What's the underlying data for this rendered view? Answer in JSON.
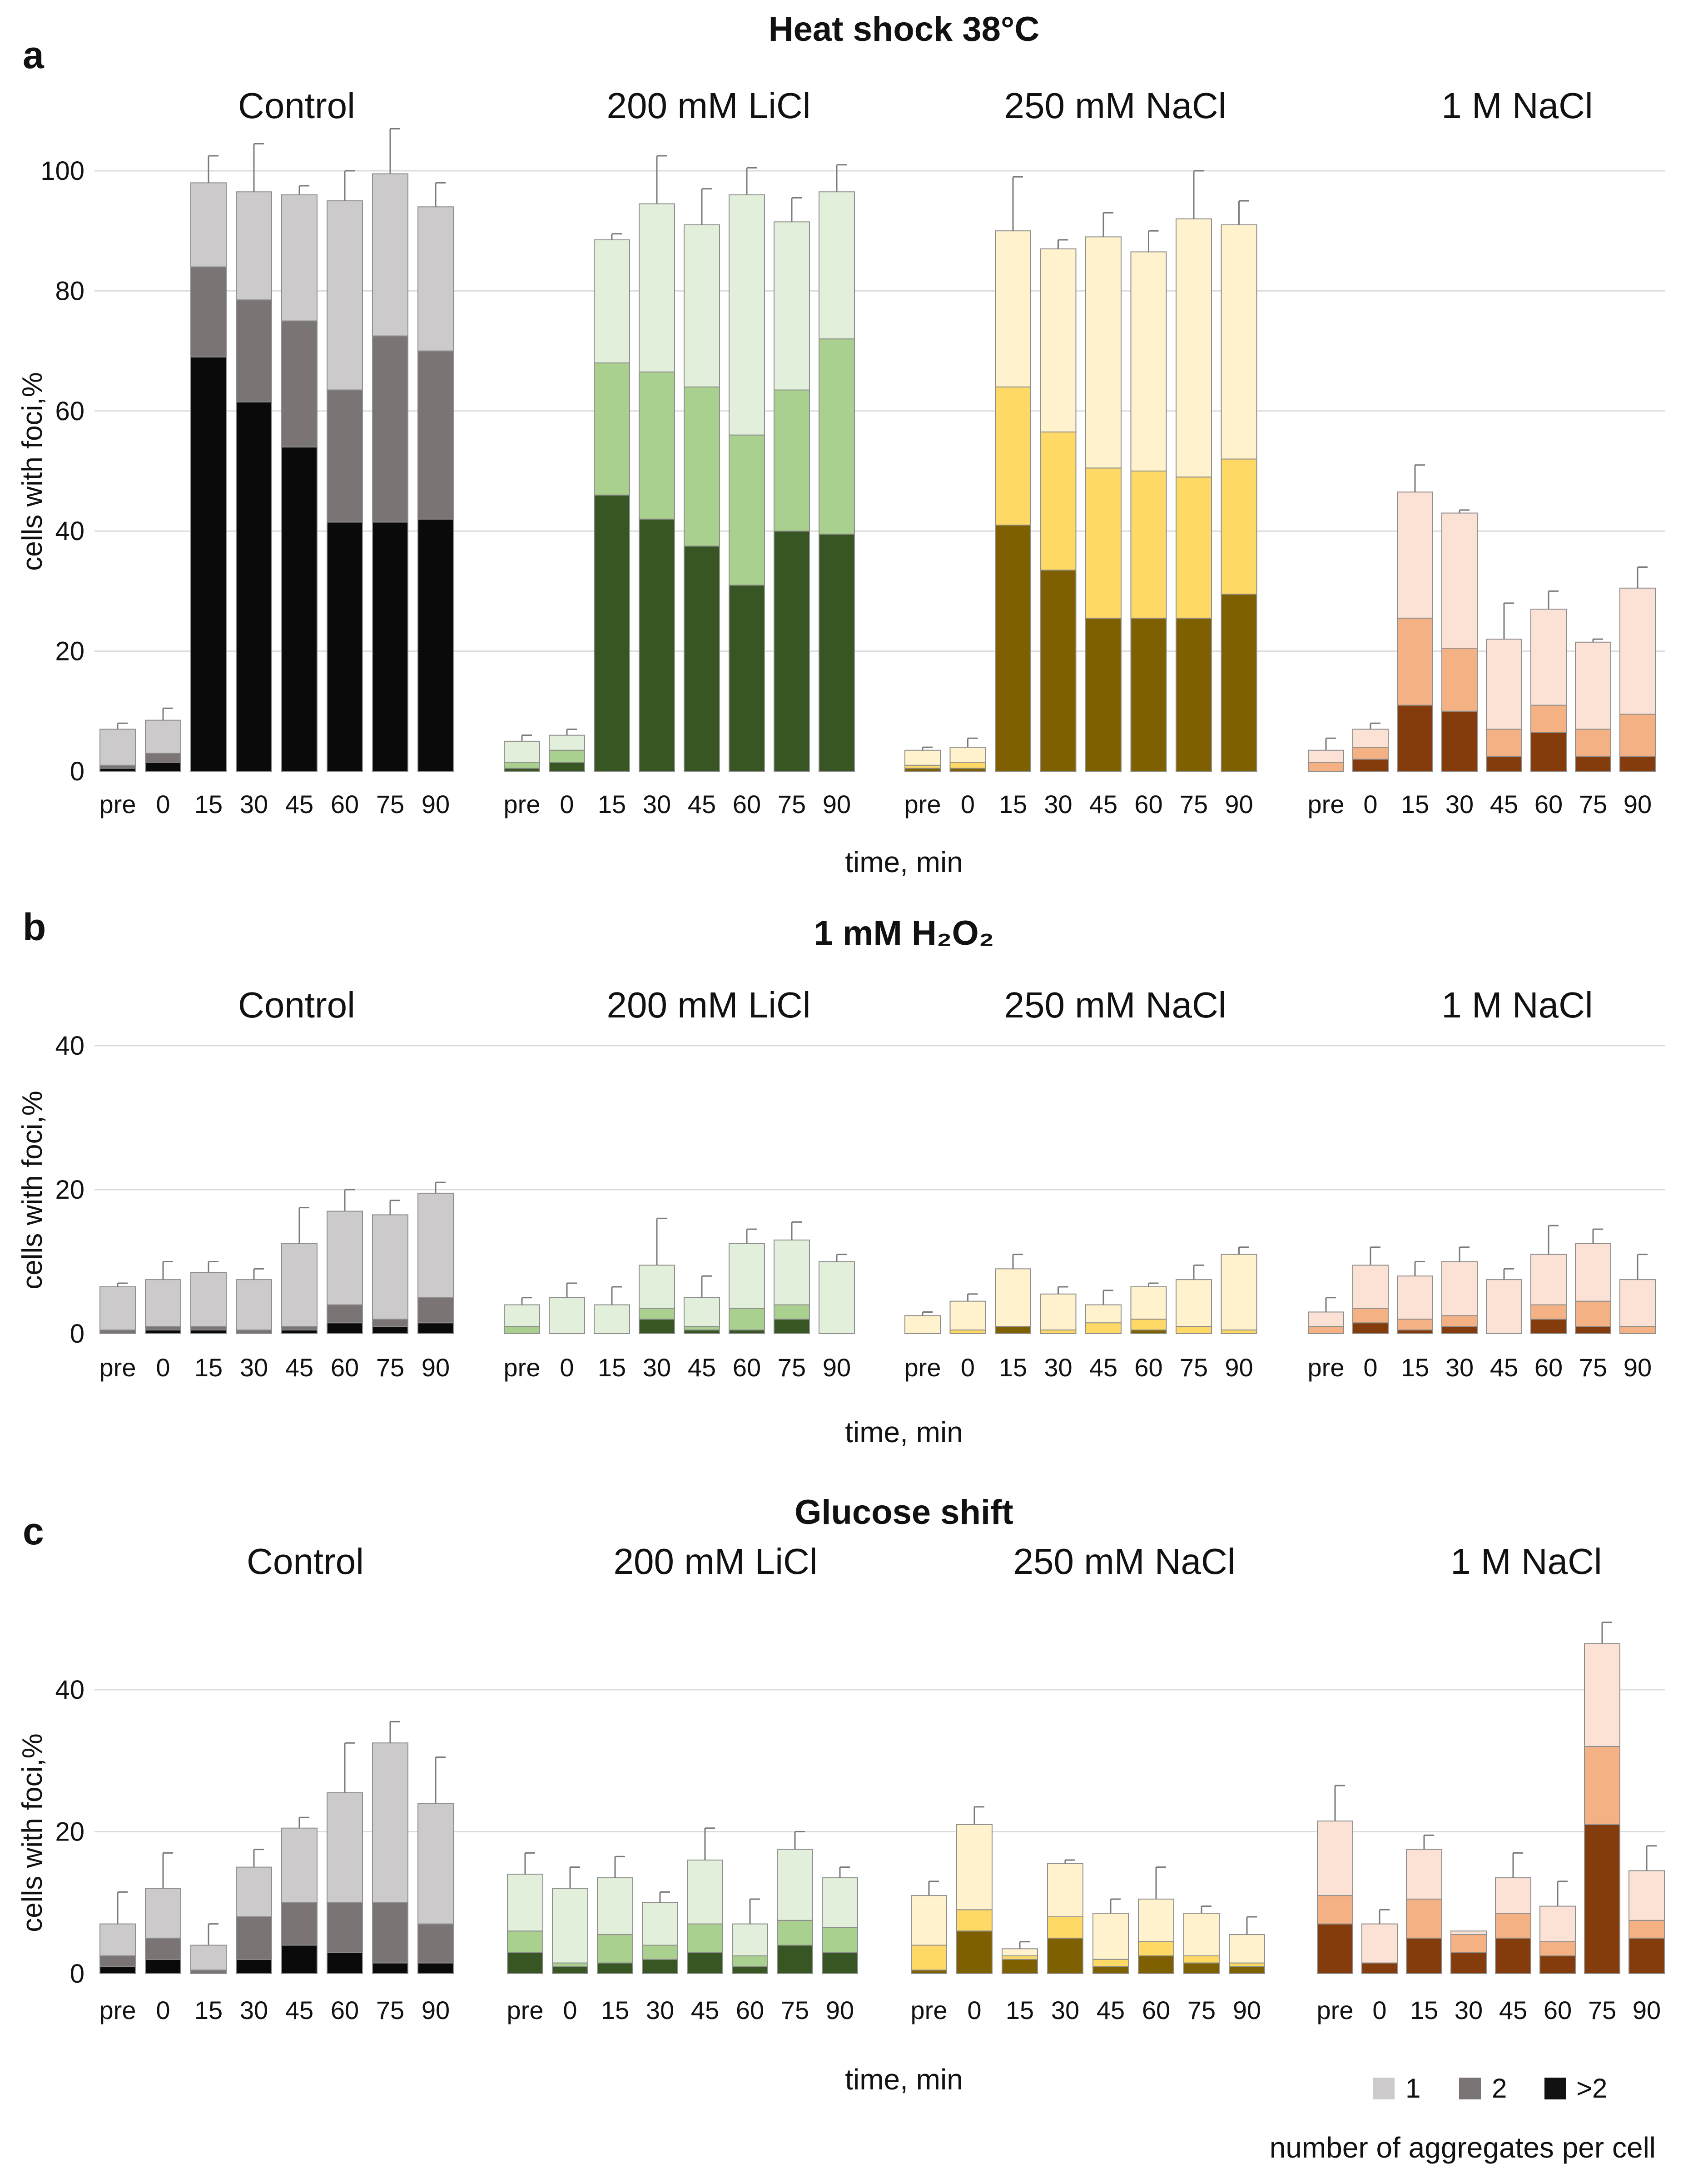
{
  "figure": {
    "xlabel": "time, min",
    "ylabel": "cells with foci,%",
    "legend": {
      "entries": [
        "1",
        "2",
        ">2"
      ],
      "title": "number of aggregates per cell",
      "colors": [
        "#cccacb",
        "#7a7474",
        "#111111"
      ]
    },
    "palettes": [
      [
        "#cccacb",
        "#7a7474",
        "#0a0a0a"
      ],
      [
        "#e2efda",
        "#a9d08e",
        "#375623"
      ],
      [
        "#fff2cc",
        "#ffd966",
        "#7f6000"
      ],
      [
        "#fbe2d5",
        "#f4b183",
        "#843c0c"
      ]
    ]
  },
  "chart_data": [
    {
      "type": "bar",
      "panel": "a",
      "title": "Heat shock 38°C",
      "ylim": [
        0,
        100
      ],
      "yticks": [
        0,
        20,
        40,
        60,
        80,
        100
      ],
      "xlabel": "time, min",
      "ylabel": "cells with foci,%",
      "groups": [
        {
          "name": "Control",
          "categories": [
            "pre",
            "0",
            "15",
            "30",
            "45",
            "60",
            "75",
            "90"
          ],
          "series": [
            {
              "name": "1",
              "values": [
                6,
                5.5,
                14,
                18,
                21,
                31.5,
                27,
                24
              ]
            },
            {
              "name": "2",
              "values": [
                0.5,
                1.5,
                15,
                17,
                21,
                22,
                31,
                28
              ]
            },
            {
              "name": ">2",
              "values": [
                0.5,
                1.5,
                69,
                61.5,
                54,
                41.5,
                41.5,
                42
              ]
            }
          ],
          "errors": [
            1,
            2,
            4.5,
            8,
            1.5,
            5,
            7.5,
            4
          ]
        },
        {
          "name": "200 mM LiCl",
          "categories": [
            "pre",
            "0",
            "15",
            "30",
            "45",
            "60",
            "75",
            "90"
          ],
          "series": [
            {
              "name": "1",
              "values": [
                3.5,
                2.5,
                20.5,
                28,
                27,
                40,
                28,
                24.5
              ]
            },
            {
              "name": "2",
              "values": [
                1,
                2,
                22,
                24.5,
                26.5,
                25,
                23.5,
                32.5
              ]
            },
            {
              "name": ">2",
              "values": [
                0.5,
                1.5,
                46,
                42,
                37.5,
                31,
                40,
                39.5
              ]
            }
          ],
          "errors": [
            1,
            1,
            1,
            8,
            6,
            4.5,
            4,
            4.5
          ]
        },
        {
          "name": "250 mM NaCl",
          "categories": [
            "pre",
            "0",
            "15",
            "30",
            "45",
            "60",
            "75",
            "90"
          ],
          "series": [
            {
              "name": "1",
              "values": [
                2.5,
                2.5,
                26,
                30.5,
                38.5,
                36.5,
                43,
                39
              ]
            },
            {
              "name": "2",
              "values": [
                0.5,
                1,
                23,
                23,
                25,
                24.5,
                23.5,
                22.5
              ]
            },
            {
              "name": ">2",
              "values": [
                0.5,
                0.5,
                41,
                33.5,
                25.5,
                25.5,
                25.5,
                29.5
              ]
            }
          ],
          "errors": [
            0.5,
            1.5,
            9,
            1.5,
            4,
            3.5,
            8,
            4
          ]
        },
        {
          "name": "1 M NaCl",
          "categories": [
            "pre",
            "0",
            "15",
            "30",
            "45",
            "60",
            "75",
            "90"
          ],
          "series": [
            {
              "name": "1",
              "values": [
                2,
                3,
                21,
                22.5,
                15,
                16,
                14.5,
                21
              ]
            },
            {
              "name": "2",
              "values": [
                1.5,
                2,
                14.5,
                10.5,
                4.5,
                4.5,
                4.5,
                7
              ]
            },
            {
              "name": ">2",
              "values": [
                0,
                2,
                11,
                10,
                2.5,
                6.5,
                2.5,
                2.5
              ]
            }
          ],
          "errors": [
            2,
            1,
            4.5,
            0.5,
            6,
            3,
            0.5,
            3.5
          ]
        }
      ]
    },
    {
      "type": "bar",
      "panel": "b",
      "title": "1 mM H₂O₂",
      "ylim": [
        0,
        40
      ],
      "yticks": [
        0,
        20,
        40
      ],
      "xlabel": "time, min",
      "ylabel": "cells with foci,%",
      "groups": [
        {
          "name": "Control",
          "categories": [
            "pre",
            "0",
            "15",
            "30",
            "45",
            "60",
            "75",
            "90"
          ],
          "series": [
            {
              "name": "1",
              "values": [
                6,
                6.5,
                7.5,
                7,
                11.5,
                13,
                14.5,
                14.5
              ]
            },
            {
              "name": "2",
              "values": [
                0.5,
                0.5,
                0.5,
                0.5,
                0.5,
                2.5,
                1,
                3.5
              ]
            },
            {
              "name": ">2",
              "values": [
                0,
                0.5,
                0.5,
                0,
                0.5,
                1.5,
                1,
                1.5
              ]
            }
          ],
          "errors": [
            0.5,
            2.5,
            1.5,
            1.5,
            5,
            3,
            2,
            1.5
          ]
        },
        {
          "name": "200 mM LiCl",
          "categories": [
            "pre",
            "0",
            "15",
            "30",
            "45",
            "60",
            "75",
            "90"
          ],
          "series": [
            {
              "name": "1",
              "values": [
                3,
                5,
                4,
                6,
                4,
                9,
                9,
                10
              ]
            },
            {
              "name": "2",
              "values": [
                1,
                0,
                0,
                1.5,
                0.5,
                3,
                2,
                0
              ]
            },
            {
              "name": ">2",
              "values": [
                0,
                0,
                0,
                2,
                0.5,
                0.5,
                2,
                0
              ]
            }
          ],
          "errors": [
            1,
            2,
            2.5,
            6.5,
            3,
            2,
            2.5,
            1
          ]
        },
        {
          "name": "250 mM NaCl",
          "categories": [
            "pre",
            "0",
            "15",
            "30",
            "45",
            "60",
            "75",
            "90"
          ],
          "series": [
            {
              "name": "1",
              "values": [
                2.5,
                4,
                8,
                5,
                2.5,
                4.5,
                6.5,
                10.5
              ]
            },
            {
              "name": "2",
              "values": [
                0,
                0.5,
                0,
                0.5,
                1.5,
                1.5,
                1,
                0.5
              ]
            },
            {
              "name": ">2",
              "values": [
                0,
                0,
                1,
                0,
                0,
                0.5,
                0,
                0
              ]
            }
          ],
          "errors": [
            0.5,
            1,
            2,
            1,
            2,
            0.5,
            2,
            1
          ]
        },
        {
          "name": "1 M NaCl",
          "categories": [
            "pre",
            "0",
            "15",
            "30",
            "45",
            "60",
            "75",
            "90"
          ],
          "series": [
            {
              "name": "1",
              "values": [
                2,
                6,
                6,
                7.5,
                7.5,
                7,
                8,
                6.5
              ]
            },
            {
              "name": "2",
              "values": [
                1,
                2,
                1.5,
                1.5,
                0,
                2,
                3.5,
                1
              ]
            },
            {
              "name": ">2",
              "values": [
                0,
                1.5,
                0.5,
                1,
                0,
                2,
                1,
                0
              ]
            }
          ],
          "errors": [
            2,
            2.5,
            2,
            2,
            1.5,
            4,
            2,
            3.5
          ]
        }
      ]
    },
    {
      "type": "bar",
      "panel": "c",
      "title": "Glucose shift",
      "ylim": [
        0,
        40
      ],
      "yticks": [
        0,
        20,
        40
      ],
      "xlabel": "time, min",
      "ylabel": "cells with foci,%",
      "groups": [
        {
          "name": "Control",
          "categories": [
            "pre",
            "0",
            "15",
            "30",
            "45",
            "60",
            "75",
            "90"
          ],
          "series": [
            {
              "name": "1",
              "values": [
                4.5,
                7,
                3.5,
                7,
                10.5,
                15.5,
                22.5,
                17
              ]
            },
            {
              "name": "2",
              "values": [
                1.5,
                3,
                0.5,
                6,
                6,
                7,
                8.5,
                5.5
              ]
            },
            {
              "name": ">2",
              "values": [
                1,
                2,
                0,
                2,
                4,
                3,
                1.5,
                1.5
              ]
            }
          ],
          "errors": [
            4.5,
            5,
            3,
            2.5,
            1.5,
            7,
            3,
            6.5
          ]
        },
        {
          "name": "200 mM LiCl",
          "categories": [
            "pre",
            "0",
            "15",
            "30",
            "45",
            "60",
            "75",
            "90"
          ],
          "series": [
            {
              "name": "1",
              "values": [
                8,
                10.5,
                8,
                6,
                9,
                4.5,
                10,
                7
              ]
            },
            {
              "name": "2",
              "values": [
                3,
                0.5,
                4,
                2,
                4,
                1.5,
                3.5,
                3.5
              ]
            },
            {
              "name": ">2",
              "values": [
                3,
                1,
                1.5,
                2,
                3,
                1,
                4,
                3
              ]
            }
          ],
          "errors": [
            3,
            3,
            3,
            1.5,
            4.5,
            3.5,
            2.5,
            1.5
          ]
        },
        {
          "name": "250 mM NaCl",
          "categories": [
            "pre",
            "0",
            "15",
            "30",
            "45",
            "60",
            "75",
            "90"
          ],
          "series": [
            {
              "name": "1",
              "values": [
                7,
                12,
                1,
                7.5,
                6.5,
                6,
                6,
                4
              ]
            },
            {
              "name": "2",
              "values": [
                3.5,
                3,
                0.5,
                3,
                1,
                2,
                1,
                0.5
              ]
            },
            {
              "name": ">2",
              "values": [
                0.5,
                6,
                2,
                5,
                1,
                2.5,
                1.5,
                1
              ]
            }
          ],
          "errors": [
            2,
            2.5,
            1,
            0.5,
            2,
            4.5,
            1,
            2.5
          ]
        },
        {
          "name": "1 M NaCl",
          "categories": [
            "pre",
            "0",
            "15",
            "30",
            "45",
            "60",
            "75",
            "90"
          ],
          "series": [
            {
              "name": "1",
              "values": [
                10.5,
                5.5,
                7,
                0.5,
                5,
                5,
                14.5,
                7
              ]
            },
            {
              "name": "2",
              "values": [
                4,
                0,
                5.5,
                2.5,
                3.5,
                2,
                11,
                2.5
              ]
            },
            {
              "name": ">2",
              "values": [
                7,
                1.5,
                5,
                3,
                5,
                2.5,
                21,
                5
              ]
            }
          ],
          "errors": [
            5,
            2,
            2,
            0,
            3.5,
            3.5,
            3,
            3.5
          ]
        }
      ]
    }
  ]
}
